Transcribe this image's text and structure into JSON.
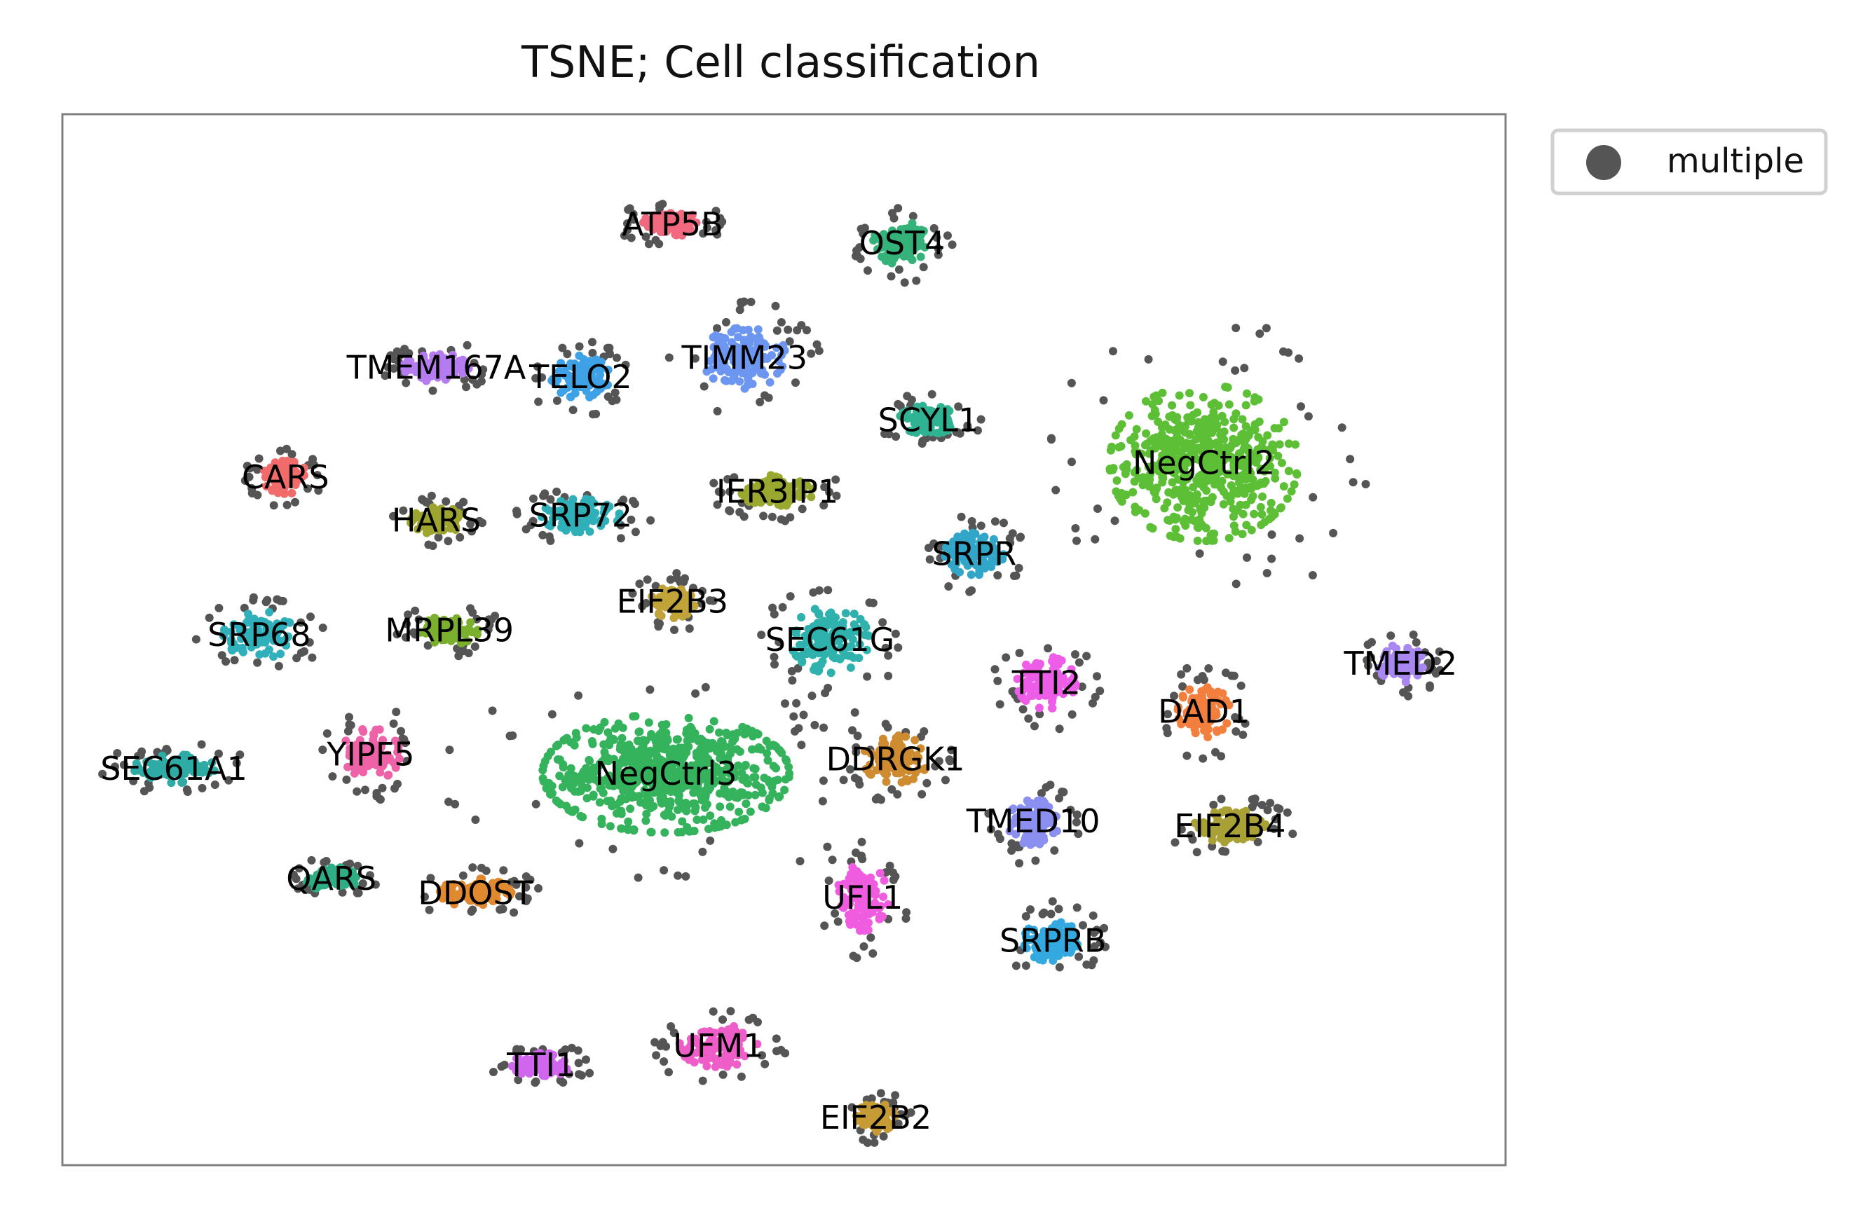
{
  "chart_data": {
    "type": "scatter",
    "title": "TSNE; Cell classification",
    "xlabel": "",
    "ylabel": "",
    "xlim": [
      -11,
      11
    ],
    "ylim": [
      -11,
      11
    ],
    "grid": false,
    "axis_ticks": false,
    "legend": {
      "placement": "outside-top-right",
      "entries": [
        {
          "name": "multiple",
          "color": "#555555"
        }
      ]
    },
    "multiple_color": "#555555",
    "clusters": [
      {
        "label": "ATP5B",
        "x": -1.7,
        "y": 8.7,
        "color": "#f0697f",
        "size": 0.55,
        "spread_x": 0.45,
        "spread_y": 0.3
      },
      {
        "label": "OST4",
        "x": 1.8,
        "y": 8.3,
        "color": "#34b27a",
        "size": 0.6,
        "spread_x": 0.45,
        "spread_y": 0.45
      },
      {
        "label": "TMEM167A",
        "x": -5.3,
        "y": 5.7,
        "color": "#b57cf0",
        "size": 0.55,
        "spread_x": 0.5,
        "spread_y": 0.3
      },
      {
        "label": "TELO2",
        "x": -3.1,
        "y": 5.5,
        "color": "#3fa1e6",
        "size": 0.55,
        "spread_x": 0.45,
        "spread_y": 0.45
      },
      {
        "label": "TIMM23",
        "x": -0.6,
        "y": 5.9,
        "color": "#6c96f0",
        "size": 0.8,
        "spread_x": 0.65,
        "spread_y": 0.65
      },
      {
        "label": "SCYL1",
        "x": 2.2,
        "y": 4.6,
        "color": "#2fb393",
        "size": 0.45,
        "spread_x": 0.45,
        "spread_y": 0.3
      },
      {
        "label": "NegCtrl2",
        "x": 6.4,
        "y": 3.7,
        "color": "#5cbf36",
        "size": 2.0,
        "spread_x": 1.45,
        "spread_y": 1.65
      },
      {
        "label": "CARS",
        "x": -7.6,
        "y": 3.4,
        "color": "#f26b6b",
        "size": 0.45,
        "spread_x": 0.35,
        "spread_y": 0.35
      },
      {
        "label": "HARS",
        "x": -5.3,
        "y": 2.5,
        "color": "#9ea52e",
        "size": 0.45,
        "spread_x": 0.4,
        "spread_y": 0.3
      },
      {
        "label": "SRP72",
        "x": -3.1,
        "y": 2.6,
        "color": "#2fafb8",
        "size": 0.6,
        "spread_x": 0.6,
        "spread_y": 0.35
      },
      {
        "label": "IER3IP1",
        "x": -0.1,
        "y": 3.1,
        "color": "#9aa830",
        "size": 0.6,
        "spread_x": 0.55,
        "spread_y": 0.35
      },
      {
        "label": "SRPR",
        "x": 2.9,
        "y": 1.8,
        "color": "#32a6c9",
        "size": 0.6,
        "spread_x": 0.45,
        "spread_y": 0.45
      },
      {
        "label": "EIF2B3",
        "x": -1.7,
        "y": 0.8,
        "color": "#c0a43a",
        "size": 0.45,
        "spread_x": 0.35,
        "spread_y": 0.35
      },
      {
        "label": "SEC61G",
        "x": 0.7,
        "y": 0.0,
        "color": "#2fb2ad",
        "size": 0.8,
        "spread_x": 0.6,
        "spread_y": 0.7
      },
      {
        "label": "SRP68",
        "x": -8.0,
        "y": 0.1,
        "color": "#2fb0ba",
        "size": 0.65,
        "spread_x": 0.55,
        "spread_y": 0.5
      },
      {
        "label": "MRPL39",
        "x": -5.1,
        "y": 0.2,
        "color": "#7ab02e",
        "size": 0.5,
        "spread_x": 0.45,
        "spread_y": 0.3
      },
      {
        "label": "TTI2",
        "x": 4.0,
        "y": -0.9,
        "color": "#ee5de8",
        "size": 0.6,
        "spread_x": 0.45,
        "spread_y": 0.55
      },
      {
        "label": "DAD1",
        "x": 6.4,
        "y": -1.5,
        "color": "#f37f3e",
        "size": 0.55,
        "spread_x": 0.4,
        "spread_y": 0.55
      },
      {
        "label": "TMED2",
        "x": 9.4,
        "y": -0.5,
        "color": "#a887f0",
        "size": 0.5,
        "spread_x": 0.35,
        "spread_y": 0.4
      },
      {
        "label": "SEC61A1",
        "x": -9.3,
        "y": -2.7,
        "color": "#2faba5",
        "size": 0.55,
        "spread_x": 0.65,
        "spread_y": 0.3
      },
      {
        "label": "YIPF5",
        "x": -6.3,
        "y": -2.4,
        "color": "#ee62a8",
        "size": 0.55,
        "spread_x": 0.45,
        "spread_y": 0.55
      },
      {
        "label": "NegCtrl3",
        "x": -1.8,
        "y": -2.8,
        "color": "#34b25c",
        "size": 2.2,
        "spread_x": 1.9,
        "spread_y": 1.25
      },
      {
        "label": "DDRGK1",
        "x": 1.7,
        "y": -2.5,
        "color": "#cf8b30",
        "size": 0.6,
        "spread_x": 0.5,
        "spread_y": 0.5
      },
      {
        "label": "TMED10",
        "x": 3.8,
        "y": -3.8,
        "color": "#8a8ff0",
        "size": 0.55,
        "spread_x": 0.4,
        "spread_y": 0.5
      },
      {
        "label": "EIF2B4",
        "x": 6.8,
        "y": -3.9,
        "color": "#a9a135",
        "size": 0.55,
        "spread_x": 0.55,
        "spread_y": 0.35
      },
      {
        "label": "QARS",
        "x": -6.9,
        "y": -5.0,
        "color": "#2fae86",
        "size": 0.4,
        "spread_x": 0.4,
        "spread_y": 0.25
      },
      {
        "label": "DDOST",
        "x": -4.7,
        "y": -5.3,
        "color": "#e0892f",
        "size": 0.55,
        "spread_x": 0.55,
        "spread_y": 0.3
      },
      {
        "label": "UFL1",
        "x": 1.2,
        "y": -5.4,
        "color": "#f05ce0",
        "size": 0.6,
        "spread_x": 0.4,
        "spread_y": 0.7
      },
      {
        "label": "SRPRB",
        "x": 4.1,
        "y": -6.3,
        "color": "#34a9e0",
        "size": 0.6,
        "spread_x": 0.45,
        "spread_y": 0.45
      },
      {
        "label": "TTI1",
        "x": -3.7,
        "y": -8.9,
        "color": "#d066ee",
        "size": 0.45,
        "spread_x": 0.45,
        "spread_y": 0.25
      },
      {
        "label": "UFM1",
        "x": -1.0,
        "y": -8.5,
        "color": "#ee5dc8",
        "size": 0.6,
        "spread_x": 0.6,
        "spread_y": 0.45
      },
      {
        "label": "EIF2B2",
        "x": 1.4,
        "y": -10.0,
        "color": "#c69b35",
        "size": 0.4,
        "spread_x": 0.3,
        "spread_y": 0.3
      }
    ]
  }
}
